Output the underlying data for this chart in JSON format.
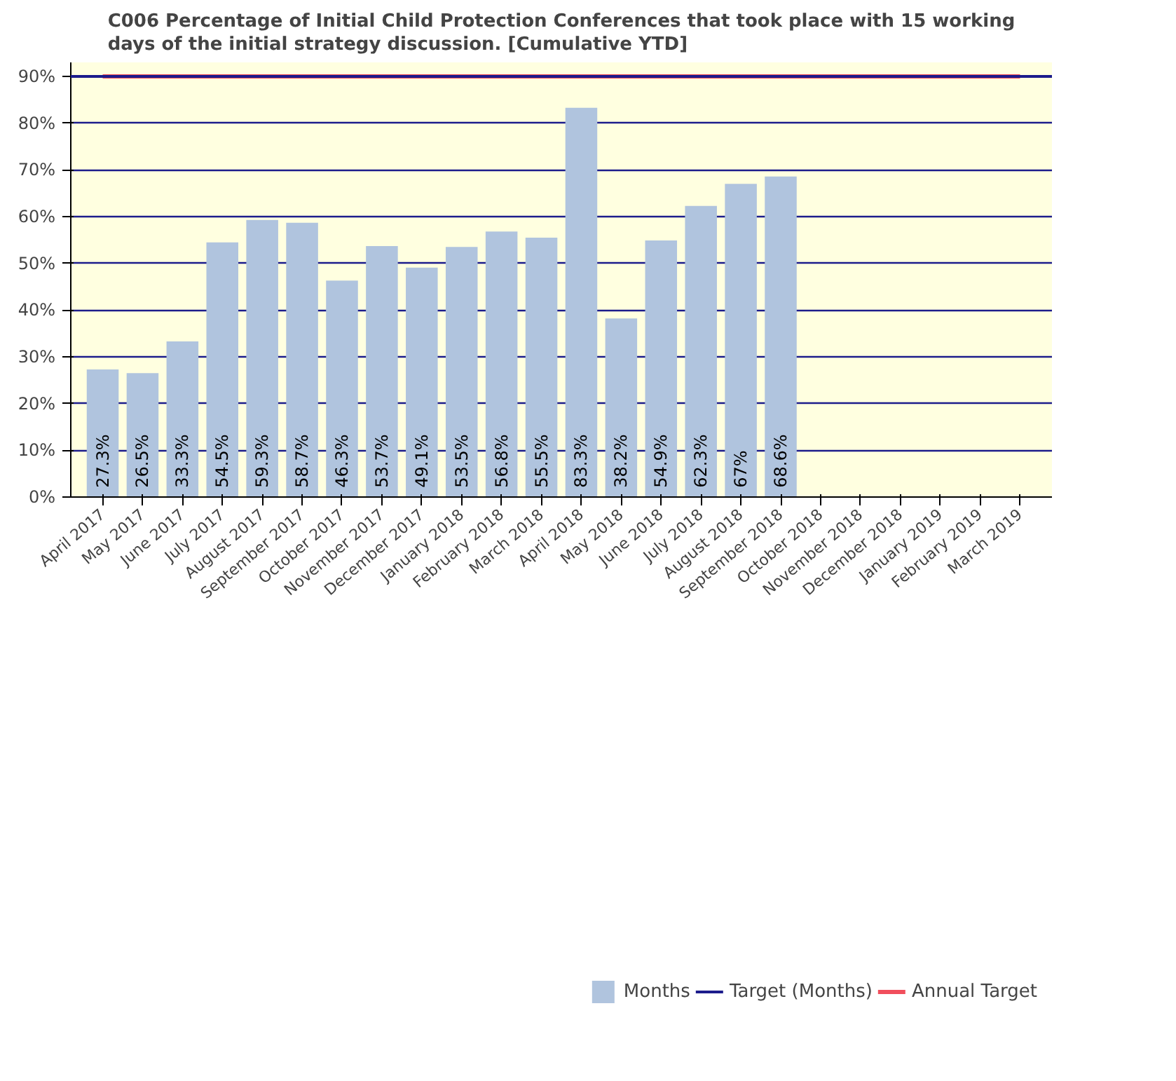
{
  "chart_data": {
    "type": "bar",
    "title": "C006 Percentage of Initial Child Protection Conferences that took place with 15 working days of the initial strategy discussion. [Cumulative YTD]",
    "categories": [
      "April 2017",
      "May 2017",
      "June 2017",
      "July 2017",
      "August 2017",
      "September 2017",
      "October 2017",
      "November 2017",
      "December 2017",
      "January 2018",
      "February 2018",
      "March 2018",
      "April 2018",
      "May 2018",
      "June 2018",
      "July 2018",
      "August 2018",
      "September 2018",
      "October 2018",
      "November 2018",
      "December 2018",
      "January 2019",
      "February 2019",
      "March 2019"
    ],
    "series": [
      {
        "name": "Months",
        "color": "#b0c4de",
        "values": [
          27.3,
          26.5,
          33.3,
          54.5,
          59.3,
          58.7,
          46.3,
          53.7,
          49.1,
          53.5,
          56.8,
          55.5,
          83.3,
          38.2,
          54.9,
          62.3,
          67,
          68.6,
          null,
          null,
          null,
          null,
          null,
          null
        ],
        "value_labels": [
          "27.3%",
          "26.5%",
          "33.3%",
          "54.5%",
          "59.3%",
          "58.7%",
          "46.3%",
          "53.7%",
          "49.1%",
          "53.5%",
          "56.8%",
          "55.5%",
          "83.3%",
          "38.2%",
          "54.9%",
          "62.3%",
          "67%",
          "68.6%",
          null,
          null,
          null,
          null,
          null,
          null
        ]
      },
      {
        "name": "Annual Target",
        "type": "line",
        "color": "#ee2233",
        "values": [
          90,
          90,
          90,
          90,
          90,
          90,
          90,
          90,
          90,
          90,
          90,
          90,
          90,
          90,
          90,
          90,
          90,
          90,
          90,
          90,
          90,
          90,
          90,
          90
        ]
      }
    ],
    "ref_lines": [
      {
        "axis": "y",
        "value": 90,
        "label": "Target (Months)",
        "color": "#1c1c8c"
      }
    ],
    "ylim": [
      0,
      93
    ],
    "yticks": [
      {
        "value": 0,
        "label": "0%"
      },
      {
        "value": 10,
        "label": "10%"
      },
      {
        "value": 20,
        "label": "20%"
      },
      {
        "value": 30,
        "label": "30%"
      },
      {
        "value": 40,
        "label": "40%"
      },
      {
        "value": 50,
        "label": "50%"
      },
      {
        "value": 60,
        "label": "60%"
      },
      {
        "value": 70,
        "label": "70%"
      },
      {
        "value": 80,
        "label": "80%"
      },
      {
        "value": 90,
        "label": "90%"
      }
    ],
    "grid": "y",
    "legend": "bottom"
  }
}
